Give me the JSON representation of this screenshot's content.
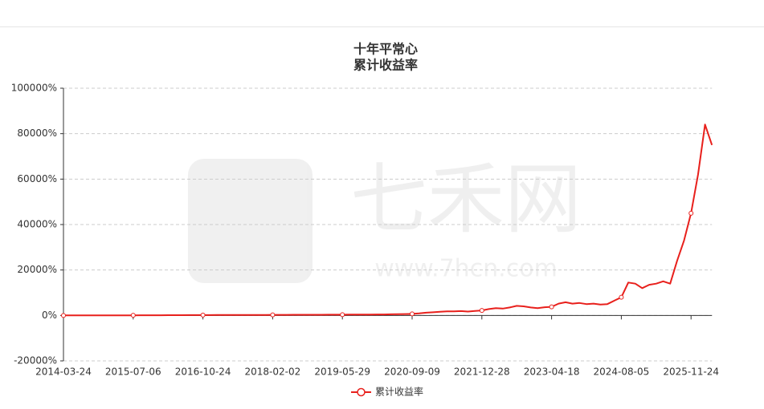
{
  "chart_data": {
    "type": "line",
    "title": "十年平常心",
    "subtitle": "累计收益率",
    "watermark": [
      "七禾网",
      "www.7hcn.com"
    ],
    "categories": [
      "2014-03-24",
      null,
      null,
      null,
      null,
      null,
      null,
      null,
      null,
      null,
      "2015-07-06",
      null,
      null,
      null,
      null,
      null,
      null,
      null,
      null,
      null,
      "2016-10-24",
      null,
      null,
      null,
      null,
      null,
      null,
      null,
      null,
      null,
      "2018-02-02",
      null,
      null,
      null,
      null,
      null,
      null,
      null,
      null,
      null,
      "2019-05-29",
      null,
      null,
      null,
      null,
      null,
      null,
      null,
      null,
      null,
      "2020-09-09",
      null,
      null,
      null,
      null,
      null,
      null,
      null,
      null,
      null,
      "2021-12-28",
      null,
      null,
      null,
      null,
      null,
      null,
      null,
      null,
      null,
      "2023-04-18",
      null,
      null,
      null,
      null,
      null,
      null,
      null,
      null,
      null,
      "2024-08-05",
      null,
      null,
      null,
      null,
      null,
      null,
      null,
      null,
      null,
      "2025-11-24",
      null,
      null,
      null
    ],
    "series": [
      {
        "name": "累计收益率",
        "color": "#e8201c",
        "values": [
          0,
          0,
          5,
          10,
          10,
          20,
          30,
          30,
          40,
          50,
          60,
          70,
          80,
          90,
          100,
          110,
          120,
          130,
          140,
          150,
          160,
          170,
          180,
          190,
          200,
          200,
          210,
          220,
          230,
          240,
          250,
          260,
          270,
          280,
          280,
          290,
          300,
          310,
          320,
          330,
          340,
          350,
          370,
          390,
          410,
          430,
          450,
          500,
          550,
          600,
          700,
          900,
          1200,
          1400,
          1600,
          1800,
          1800,
          1900,
          1700,
          2000,
          2200,
          2800,
          3200,
          3000,
          3500,
          4200,
          4000,
          3500,
          3200,
          3600,
          3800,
          5200,
          5800,
          5200,
          5500,
          5000,
          5200,
          4800,
          5000,
          6500,
          8000,
          14500,
          14000,
          12000,
          13500,
          14000,
          15000,
          14000,
          24000,
          33000,
          45000,
          62000,
          84000,
          75000
        ]
      }
    ],
    "ylim": [
      -20000,
      100000
    ],
    "yticks": [
      {
        "value": -20000,
        "label": "-20000%"
      },
      {
        "value": 0,
        "label": "0%"
      },
      {
        "value": 20000,
        "label": "20000%"
      },
      {
        "value": 40000,
        "label": "40000%"
      },
      {
        "value": 60000,
        "label": "60000%"
      },
      {
        "value": 80000,
        "label": "80000%"
      },
      {
        "value": 100000,
        "label": "100000%"
      }
    ],
    "grid": true
  }
}
